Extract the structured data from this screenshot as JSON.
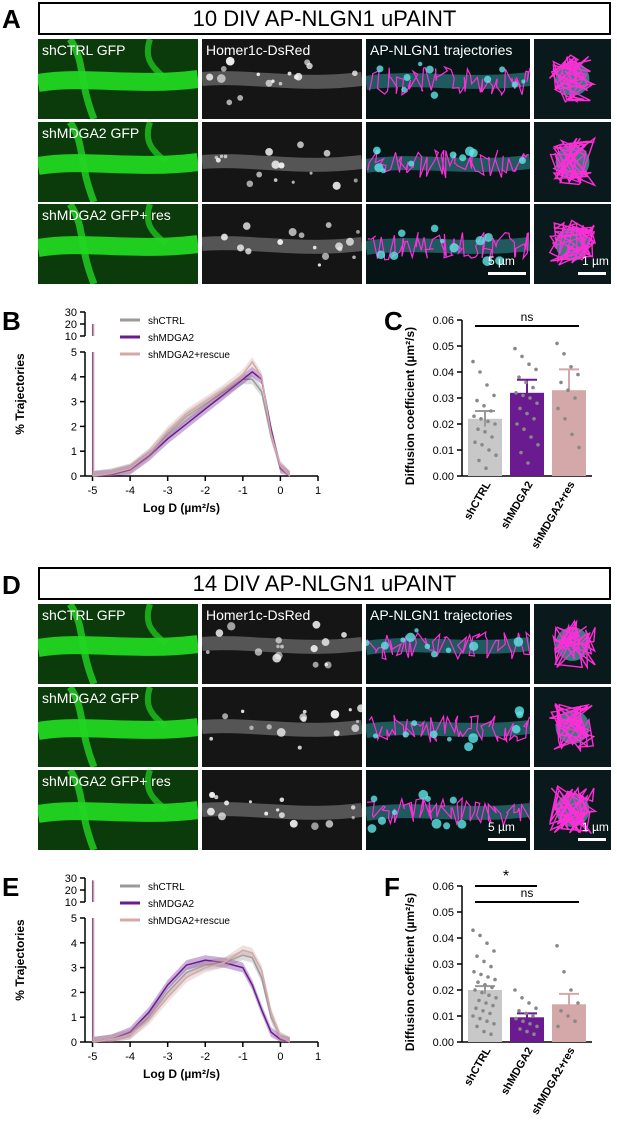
{
  "panels": {
    "A": "A",
    "B": "B",
    "C": "C",
    "D": "D",
    "E": "E",
    "F": "F"
  },
  "top": {
    "title": "10 DIV AP-NLGN1 uPAINT",
    "col_labels": [
      "Homer1c-DsRed",
      "AP-NLGN1 trajectories"
    ],
    "row_labels": [
      "shCTRL GFP",
      "shMDGA2 GFP",
      "shMDGA2 GFP+ res"
    ],
    "scale_wide": "5 µm",
    "scale_zoom": "1 µm"
  },
  "bottom": {
    "title": "14 DIV AP-NLGN1 uPAINT",
    "col_labels": [
      "Homer1c-DsRed",
      "AP-NLGN1 trajectories"
    ],
    "row_labels": [
      "shCTRL GFP",
      "shMDGA2 GFP",
      "shMDGA2 GFP+ res"
    ],
    "scale_wide": "5 µm",
    "scale_zoom": "1 µm"
  },
  "colors": {
    "green": "#22d622",
    "magenta": "#ff2dd8",
    "cyan": "#5fe3e6",
    "shCTRL": "#9a9a9a",
    "shMDGA2": "#6a1b8f",
    "rescue": "#d4a8a8"
  },
  "chart_data": [
    {
      "id": "B",
      "type": "line",
      "xlabel": "Log D (µm²/s)",
      "ylabel": "% Trajectories",
      "xlim": [
        -5.2,
        1
      ],
      "xticks": [
        -5,
        -4,
        -3,
        -2,
        -1,
        0,
        1
      ],
      "yticks_lower": [
        0,
        1,
        2,
        3,
        4,
        5
      ],
      "yticks_upper": [
        10,
        20,
        30
      ],
      "immobile_peak_x": -5,
      "x": [
        -5,
        -4.5,
        -4,
        -3.5,
        -3,
        -2.5,
        -2,
        -1.5,
        -1,
        -0.75,
        -0.5,
        -0.25,
        0,
        0.25
      ],
      "series": [
        {
          "name": "shCTRL",
          "color": "#9a9a9a",
          "peak": 20,
          "values": [
            0,
            0.1,
            0.3,
            0.9,
            1.7,
            2.4,
            2.9,
            3.4,
            3.9,
            3.9,
            3.4,
            1.6,
            0.4,
            0
          ]
        },
        {
          "name": "shMDGA2",
          "color": "#6a1b8f",
          "peak": 20,
          "values": [
            0,
            0.05,
            0.25,
            0.8,
            1.5,
            2.1,
            2.7,
            3.3,
            3.9,
            4.2,
            3.9,
            1.9,
            0.3,
            0
          ]
        },
        {
          "name": "shMDGA2+rescue",
          "color": "#d4a8a8",
          "peak": 20,
          "values": [
            0,
            0.1,
            0.3,
            0.9,
            1.8,
            2.5,
            3.0,
            3.5,
            4.1,
            4.6,
            4.0,
            1.7,
            0.4,
            0
          ]
        }
      ],
      "legend": "top-left"
    },
    {
      "id": "C",
      "type": "bar",
      "ylabel": "Diffusion coefficient (µm²/s)",
      "ylim": [
        0,
        0.06
      ],
      "yticks": [
        "0.00",
        "0.01",
        "0.02",
        "0.03",
        "0.04",
        "0.05",
        "0.06"
      ],
      "categories": [
        "shCTRL",
        "shMDGA2",
        "shMDGA2+res"
      ],
      "values": [
        0.022,
        0.032,
        0.033
      ],
      "errors": [
        0.003,
        0.005,
        0.008
      ],
      "colors": [
        "#c8c8c8",
        "#6a1b8f",
        "#d4a8a8"
      ],
      "significance": [
        {
          "from": 0,
          "to": 2,
          "label": "ns"
        }
      ],
      "points": [
        [
          0.044,
          0.04,
          0.035,
          0.031,
          0.029,
          0.027,
          0.025,
          0.023,
          0.022,
          0.021,
          0.02,
          0.018,
          0.017,
          0.015,
          0.013,
          0.012,
          0.01,
          0.008,
          0.006,
          0.003
        ],
        [
          0.049,
          0.046,
          0.043,
          0.041,
          0.038,
          0.036,
          0.034,
          0.032,
          0.031,
          0.03,
          0.028,
          0.026,
          0.024,
          0.022,
          0.02,
          0.018,
          0.015,
          0.012,
          0.009,
          0.005
        ],
        [
          0.051,
          0.047,
          0.042,
          0.039,
          0.036,
          0.033,
          0.03,
          0.026,
          0.022,
          0.016,
          0.011
        ]
      ]
    },
    {
      "id": "E",
      "type": "line",
      "xlabel": "Log D (µm²/s)",
      "ylabel": "% Trajectories",
      "xlim": [
        -5.2,
        1
      ],
      "xticks": [
        -5,
        -4,
        -3,
        -2,
        -1,
        0,
        1
      ],
      "yticks_lower": [
        0,
        1,
        2,
        3,
        4,
        5
      ],
      "yticks_upper": [
        10,
        20,
        30
      ],
      "immobile_peak_x": -5,
      "x": [
        -5,
        -4.5,
        -4,
        -3.5,
        -3,
        -2.5,
        -2,
        -1.5,
        -1,
        -0.75,
        -0.5,
        -0.25,
        0,
        0.25
      ],
      "series": [
        {
          "name": "shCTRL",
          "color": "#9a9a9a",
          "peak": 28,
          "values": [
            0,
            0.1,
            0.3,
            1.0,
            2.0,
            2.8,
            3.1,
            3.2,
            3.5,
            3.4,
            2.6,
            1.0,
            0.2,
            0
          ]
        },
        {
          "name": "shMDGA2",
          "color": "#6a1b8f",
          "peak": 28,
          "values": [
            0,
            0.1,
            0.4,
            1.2,
            2.3,
            3.1,
            3.3,
            3.2,
            3.0,
            2.3,
            1.3,
            0.4,
            0.1,
            0
          ]
        },
        {
          "name": "shMDGA2+rescue",
          "color": "#d4a8a8",
          "peak": 28,
          "values": [
            0,
            0.1,
            0.3,
            0.9,
            1.8,
            2.6,
            3.0,
            3.2,
            3.7,
            3.6,
            2.9,
            1.2,
            0.2,
            0
          ]
        }
      ],
      "legend": "top-left"
    },
    {
      "id": "F",
      "type": "bar",
      "ylabel": "Diffusion coefficient (µm²/s)",
      "ylim": [
        0,
        0.06
      ],
      "yticks": [
        "0.00",
        "0.01",
        "0.02",
        "0.03",
        "0.04",
        "0.05",
        "0.06"
      ],
      "categories": [
        "shCTRL",
        "shMDGA2",
        "shMDGA2+res"
      ],
      "values": [
        0.02,
        0.0095,
        0.0145
      ],
      "errors": [
        0.0015,
        0.0015,
        0.004
      ],
      "colors": [
        "#c8c8c8",
        "#6a1b8f",
        "#d4a8a8"
      ],
      "significance": [
        {
          "from": 0,
          "to": 1,
          "label": "*"
        },
        {
          "from": 0,
          "to": 2,
          "label": "ns"
        }
      ],
      "points": [
        [
          0.043,
          0.041,
          0.038,
          0.035,
          0.033,
          0.031,
          0.029,
          0.027,
          0.026,
          0.025,
          0.024,
          0.023,
          0.022,
          0.021,
          0.02,
          0.019,
          0.018,
          0.017,
          0.016,
          0.015,
          0.014,
          0.013,
          0.012,
          0.011,
          0.01,
          0.009,
          0.008,
          0.007,
          0.006,
          0.004,
          0.003
        ],
        [
          0.02,
          0.017,
          0.015,
          0.013,
          0.012,
          0.011,
          0.01,
          0.009,
          0.008,
          0.007,
          0.006,
          0.005,
          0.004,
          0.003
        ],
        [
          0.037,
          0.027,
          0.02,
          0.015,
          0.012,
          0.01,
          0.008,
          0.006
        ]
      ]
    }
  ]
}
